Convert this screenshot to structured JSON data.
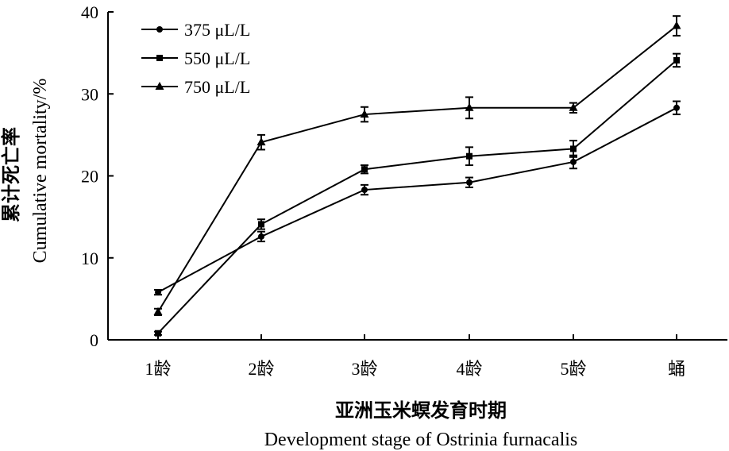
{
  "chart_data": {
    "type": "line",
    "title": "",
    "xlabel_cn": "亚洲玉米螟发育时期",
    "xlabel_en": "Development stage of Ostrinia furnacalis",
    "ylabel_cn": "累计死亡率",
    "ylabel_en": "Cumulative mortality/%",
    "categories": [
      "1龄",
      "2龄",
      "3龄",
      "4龄",
      "5龄",
      "蛹"
    ],
    "ylim": [
      0,
      40
    ],
    "yticks": [
      0,
      10,
      20,
      30,
      40
    ],
    "grid": false,
    "legend_position": "top-left",
    "series": [
      {
        "name": "375 μL/L",
        "marker": "circle",
        "values": [
          5.8,
          12.6,
          18.3,
          19.2,
          21.7,
          28.3
        ],
        "errors": [
          0.3,
          0.6,
          0.6,
          0.6,
          0.8,
          0.8
        ]
      },
      {
        "name": "550 μL/L",
        "marker": "square",
        "values": [
          0.8,
          14.1,
          20.8,
          22.4,
          23.3,
          34.1
        ],
        "errors": [
          0.2,
          0.6,
          0.5,
          1.1,
          1.0,
          0.8
        ]
      },
      {
        "name": "750 μL/L",
        "marker": "triangle",
        "values": [
          3.4,
          24.1,
          27.5,
          28.3,
          28.3,
          38.3
        ],
        "errors": [
          0.4,
          0.9,
          0.9,
          1.3,
          0.6,
          1.2
        ]
      }
    ]
  }
}
